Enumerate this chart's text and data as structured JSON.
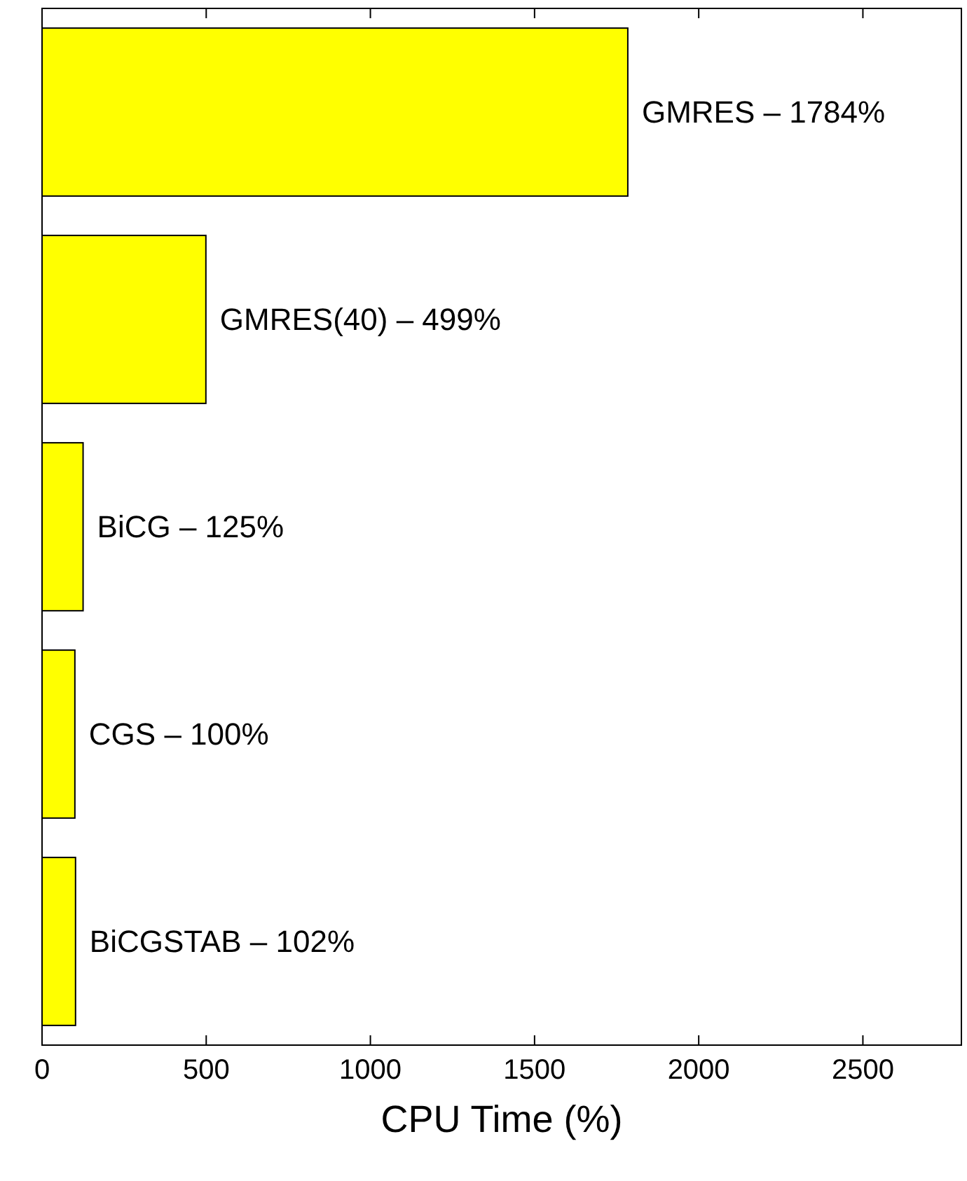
{
  "chart_data": {
    "type": "bar",
    "orientation": "horizontal",
    "xlabel": "CPU Time (%)",
    "categories": [
      null,
      null,
      null,
      null,
      null
    ],
    "values": [
      1784,
      499,
      125,
      100,
      102
    ],
    "annotations": [
      "GMRES – 1784%",
      "GMRES(40) – 499%",
      "BiCG – 125%",
      "CGS – 100%",
      "BiCGSTAB – 102%"
    ],
    "color": "#ffff00",
    "xlim": [
      0,
      2800
    ],
    "xticks": [
      0,
      500,
      1000,
      1500,
      2000,
      2500
    ],
    "grid": false
  }
}
